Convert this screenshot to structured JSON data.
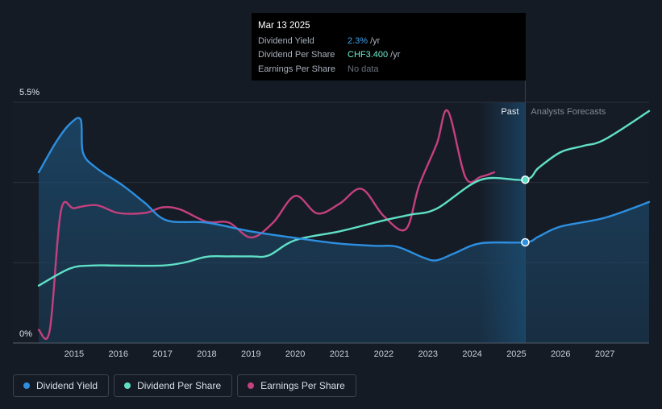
{
  "tooltip": {
    "date": "Mar 13 2025",
    "rows": [
      {
        "label": "Dividend Yield",
        "value": "2.3%",
        "unit": "/yr"
      },
      {
        "label": "Dividend Per Share",
        "value": "CHF3.400",
        "unit": "/yr"
      },
      {
        "label": "Earnings Per Share",
        "value": "No data"
      }
    ]
  },
  "legend": [
    {
      "label": "Dividend Yield",
      "color": "#2d8fe0"
    },
    {
      "label": "Dividend Per Share",
      "color": "#5fe0c6"
    },
    {
      "label": "Earnings Per Share",
      "color": "#c4407f"
    }
  ],
  "chart_data": {
    "type": "line",
    "y_top_label": "5.5%",
    "y_bottom_label": "0%",
    "ylim": [
      0,
      5.5
    ],
    "xlim": [
      2014.2,
      2028.0
    ],
    "x_ticks": [
      2015,
      2016,
      2017,
      2018,
      2019,
      2020,
      2021,
      2022,
      2023,
      2024,
      2025,
      2026,
      2027
    ],
    "past_label": "Past",
    "forecast_label": "Analysts Forecasts",
    "forecast_start": 2025.2,
    "colors": {
      "yield": "#2d8fe0",
      "dps": "#5fe0c6",
      "eps": "#c4407f"
    },
    "series": [
      {
        "name": "Dividend Yield",
        "key": "yield",
        "x": [
          2014.2,
          2014.6,
          2014.9,
          2015.15,
          2015.2,
          2015.5,
          2016.1,
          2016.6,
          2017.1,
          2018.0,
          2019.0,
          2020.0,
          2021.0,
          2021.8,
          2022.3,
          2022.9,
          2023.2,
          2023.6,
          2024.2,
          2025.2,
          2025.5,
          2026.0,
          2027.0,
          2028.0
        ],
        "values": [
          3.9,
          4.6,
          5.0,
          5.1,
          4.35,
          4.0,
          3.6,
          3.2,
          2.8,
          2.75,
          2.55,
          2.4,
          2.27,
          2.22,
          2.2,
          1.95,
          1.89,
          2.05,
          2.28,
          2.3,
          2.43,
          2.66,
          2.86,
          3.22
        ]
      },
      {
        "name": "Dividend Per Share",
        "key": "dps",
        "x": [
          2014.2,
          2014.9,
          2015.4,
          2016.0,
          2017.0,
          2017.5,
          2018.0,
          2018.5,
          2019.0,
          2019.4,
          2020.0,
          2021.0,
          2022.0,
          2022.6,
          2023.2,
          2024.2,
          2025.2,
          2025.5,
          2026.0,
          2026.5,
          2027.0,
          2028.0
        ],
        "values": [
          1.31,
          1.7,
          1.77,
          1.77,
          1.77,
          1.84,
          1.97,
          1.98,
          1.98,
          2.0,
          2.35,
          2.55,
          2.8,
          2.93,
          3.07,
          3.73,
          3.73,
          4.0,
          4.36,
          4.5,
          4.65,
          5.3
        ]
      },
      {
        "name": "Earnings Per Share",
        "key": "eps",
        "x": [
          2014.2,
          2014.45,
          2014.7,
          2015.0,
          2015.5,
          2016.0,
          2016.6,
          2017.0,
          2017.4,
          2018.0,
          2018.5,
          2019.0,
          2019.5,
          2020.0,
          2020.5,
          2021.0,
          2021.5,
          2022.0,
          2022.5,
          2022.8,
          2023.2,
          2023.45,
          2023.85,
          2024.2,
          2024.5
        ],
        "values": [
          0.3,
          0.29,
          3.0,
          3.08,
          3.15,
          2.97,
          2.97,
          3.1,
          3.05,
          2.77,
          2.75,
          2.41,
          2.75,
          3.36,
          2.96,
          3.18,
          3.52,
          2.9,
          2.6,
          3.6,
          4.55,
          5.3,
          3.78,
          3.8,
          3.9
        ]
      }
    ],
    "markers": [
      {
        "series": "yield",
        "x": 2025.2,
        "value": 2.3
      },
      {
        "series": "dps",
        "x": 2025.2,
        "value": 3.73
      }
    ]
  }
}
